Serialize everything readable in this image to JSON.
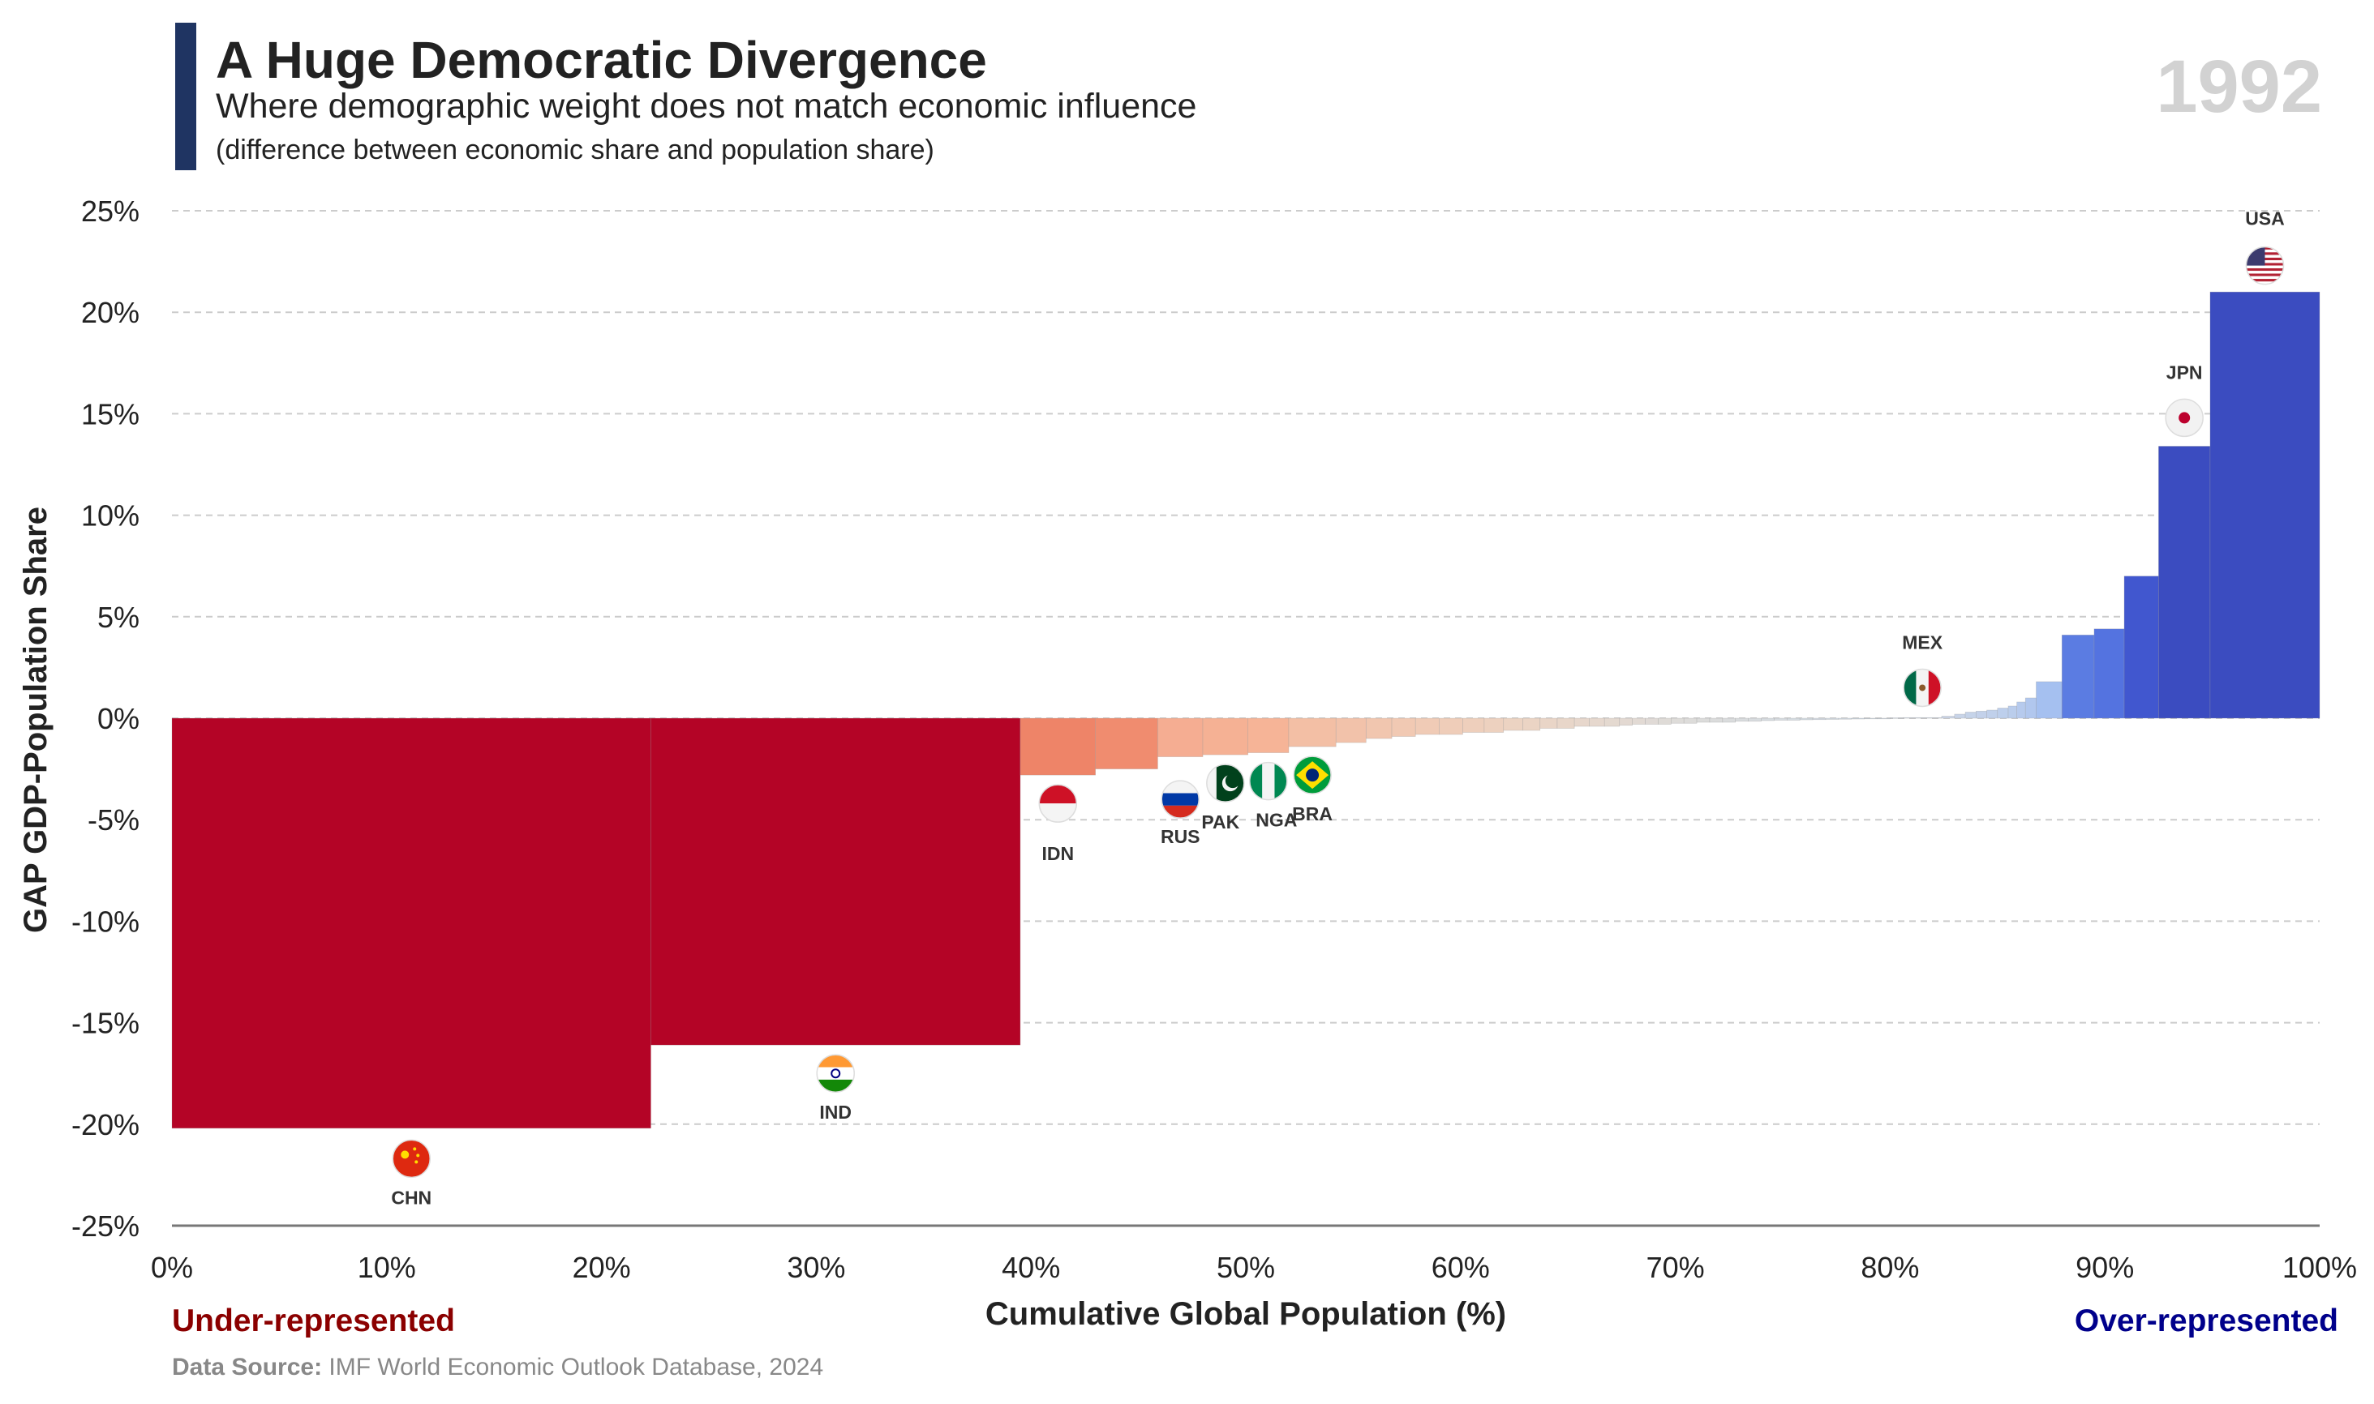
{
  "header": {
    "title": "A Huge Democratic Divergence",
    "subtitle": "Where demographic weight does not match economic influence",
    "note": "(difference between economic share and population share)",
    "year": "1992"
  },
  "footer": {
    "under_label": "Under-represented",
    "over_label": "Over-represented",
    "source_prefix": "Data Source:",
    "source_text": "IMF World Economic Outlook Database, 2024"
  },
  "colors": {
    "title_bar": "#1f3462",
    "under": "#8b0000",
    "over": "#00008b",
    "grid": "#cccccc",
    "zero_axis": "#777777"
  },
  "chart_data": {
    "type": "bar",
    "variant": "variable-width (Marimekko) bars",
    "xlabel": "Cumulative Global Population (%)",
    "ylabel": "GAP GDP-Population Share",
    "xlim": [
      0,
      100
    ],
    "ylim": [
      -25,
      25
    ],
    "xticks": [
      "0%",
      "10%",
      "20%",
      "30%",
      "40%",
      "50%",
      "60%",
      "70%",
      "80%",
      "90%",
      "100%"
    ],
    "yticks": [
      "25%",
      "20%",
      "15%",
      "10%",
      "5%",
      "0%",
      "-5%",
      "-10%",
      "-15%",
      "-20%",
      "-25%"
    ],
    "grid": true,
    "labeled_countries": [
      "CHN",
      "IND",
      "IDN",
      "RUS",
      "PAK",
      "NGA",
      "BRA",
      "MEX",
      "JPN",
      "USA"
    ],
    "bars": [
      {
        "label": "CHN",
        "x0": 0,
        "x1": 22.3,
        "value": -20.2,
        "color": "#b40426"
      },
      {
        "label": "IND",
        "x0": 22.3,
        "x1": 39.5,
        "value": -16.1,
        "color": "#b40426"
      },
      {
        "label": "IDN",
        "x0": 39.5,
        "x1": 43.0,
        "value": -2.8,
        "color": "#ee8468"
      },
      {
        "x0": 43.0,
        "x1": 45.9,
        "value": -2.5,
        "color": "#f08c6f"
      },
      {
        "label": "RUS",
        "x0": 45.9,
        "x1": 48.0,
        "value": -1.9,
        "color": "#f5ad92"
      },
      {
        "label": "PAK",
        "x0": 48.0,
        "x1": 50.1,
        "value": -1.8,
        "color": "#f5b194"
      },
      {
        "label": "NGA",
        "x0": 50.1,
        "x1": 52.0,
        "value": -1.7,
        "color": "#f6b497"
      },
      {
        "label": "BRA",
        "x0": 52.0,
        "x1": 54.2,
        "value": -1.4,
        "color": "#f3bfa5"
      },
      {
        "x0": 54.2,
        "x1": 55.6,
        "value": -1.2,
        "color": "#f2c2aa"
      },
      {
        "x0": 55.6,
        "x1": 56.8,
        "value": -1.0,
        "color": "#f1c6af"
      },
      {
        "x0": 56.8,
        "x1": 57.9,
        "value": -0.9,
        "color": "#f1c9b3"
      },
      {
        "x0": 57.9,
        "x1": 59.0,
        "value": -0.8,
        "color": "#f0cbb6"
      },
      {
        "x0": 59.0,
        "x1": 60.1,
        "value": -0.8,
        "color": "#efcdb9"
      },
      {
        "x0": 60.1,
        "x1": 61.1,
        "value": -0.7,
        "color": "#eecfbc"
      },
      {
        "x0": 61.1,
        "x1": 62.0,
        "value": -0.7,
        "color": "#edd1bf"
      },
      {
        "x0": 62.0,
        "x1": 62.9,
        "value": -0.6,
        "color": "#ecd3c2"
      },
      {
        "x0": 62.9,
        "x1": 63.7,
        "value": -0.6,
        "color": "#ebd4c4"
      },
      {
        "x0": 63.7,
        "x1": 64.5,
        "value": -0.5,
        "color": "#e9d5c7"
      },
      {
        "x0": 64.5,
        "x1": 65.3,
        "value": -0.5,
        "color": "#e8d6c9"
      },
      {
        "x0": 65.3,
        "x1": 66.0,
        "value": -0.4,
        "color": "#e7d7cc"
      },
      {
        "x0": 66.0,
        "x1": 66.7,
        "value": -0.4,
        "color": "#e6d8ce"
      },
      {
        "x0": 66.7,
        "x1": 67.4,
        "value": -0.4,
        "color": "#e4d9d0"
      },
      {
        "x0": 67.4,
        "x1": 68.0,
        "value": -0.35,
        "color": "#e3d9d2"
      },
      {
        "x0": 68.0,
        "x1": 68.6,
        "value": -0.3,
        "color": "#e2dad4"
      },
      {
        "x0": 68.6,
        "x1": 69.2,
        "value": -0.3,
        "color": "#e0dad6"
      },
      {
        "x0": 69.2,
        "x1": 69.8,
        "value": -0.3,
        "color": "#dfdbd7"
      },
      {
        "x0": 69.8,
        "x1": 70.4,
        "value": -0.25,
        "color": "#dedcd9"
      },
      {
        "x0": 70.4,
        "x1": 71.0,
        "value": -0.25,
        "color": "#dddcda"
      },
      {
        "x0": 71.0,
        "x1": 71.6,
        "value": -0.2,
        "color": "#dcdcdb"
      },
      {
        "x0": 71.6,
        "x1": 72.2,
        "value": -0.2,
        "color": "#dbdcdc"
      },
      {
        "x0": 72.2,
        "x1": 72.8,
        "value": -0.2,
        "color": "#dadcdd"
      },
      {
        "x0": 72.8,
        "x1": 73.4,
        "value": -0.15,
        "color": "#d9dcde"
      },
      {
        "x0": 73.4,
        "x1": 74.0,
        "value": -0.15,
        "color": "#d8dcdf"
      },
      {
        "x0": 74.0,
        "x1": 74.6,
        "value": -0.12,
        "color": "#d7dce0"
      },
      {
        "x0": 74.6,
        "x1": 75.2,
        "value": -0.1,
        "color": "#d6dbe0"
      },
      {
        "x0": 75.2,
        "x1": 75.8,
        "value": -0.1,
        "color": "#d5dbe1"
      },
      {
        "x0": 75.8,
        "x1": 76.4,
        "value": -0.08,
        "color": "#d4dbe2"
      },
      {
        "x0": 76.4,
        "x1": 77.0,
        "value": -0.07,
        "color": "#d3dae2"
      },
      {
        "x0": 77.0,
        "x1": 77.6,
        "value": -0.06,
        "color": "#d2dae3"
      },
      {
        "x0": 77.6,
        "x1": 78.2,
        "value": -0.05,
        "color": "#d1dae3"
      },
      {
        "x0": 78.2,
        "x1": 78.8,
        "value": -0.04,
        "color": "#d0d9e4"
      },
      {
        "x0": 78.8,
        "x1": 79.4,
        "value": -0.03,
        "color": "#cfd9e4"
      },
      {
        "x0": 79.4,
        "x1": 80.0,
        "value": -0.02,
        "color": "#ced8e5"
      },
      {
        "x0": 80.0,
        "x1": 80.6,
        "value": 0.02,
        "color": "#cdd8e5"
      },
      {
        "label": "MEX",
        "x0": 80.6,
        "x1": 82.4,
        "value": 0.03,
        "color": "#ccd7e6"
      },
      {
        "x0": 82.4,
        "x1": 83.0,
        "value": 0.1,
        "color": "#cad5e7"
      },
      {
        "x0": 83.0,
        "x1": 83.5,
        "value": 0.2,
        "color": "#c8d4e8"
      },
      {
        "x0": 83.5,
        "x1": 84.0,
        "value": 0.3,
        "color": "#c5d3e9"
      },
      {
        "x0": 84.0,
        "x1": 84.5,
        "value": 0.35,
        "color": "#c3d1ea"
      },
      {
        "x0": 84.5,
        "x1": 85.0,
        "value": 0.4,
        "color": "#c0d0eb"
      },
      {
        "x0": 85.0,
        "x1": 85.5,
        "value": 0.5,
        "color": "#bdcfec"
      },
      {
        "x0": 85.5,
        "x1": 85.9,
        "value": 0.6,
        "color": "#bacdec"
      },
      {
        "x0": 85.9,
        "x1": 86.3,
        "value": 0.8,
        "color": "#b6caed"
      },
      {
        "x0": 86.3,
        "x1": 86.8,
        "value": 1.0,
        "color": "#b1c7ee"
      },
      {
        "x0": 86.8,
        "x1": 88.0,
        "value": 1.8,
        "color": "#a5c0f0"
      },
      {
        "x0": 88.0,
        "x1": 89.5,
        "value": 4.1,
        "color": "#5b7ce2"
      },
      {
        "x0": 89.5,
        "x1": 90.9,
        "value": 4.4,
        "color": "#5473e0"
      },
      {
        "x0": 90.9,
        "x1": 92.5,
        "value": 7.0,
        "color": "#4157cf"
      },
      {
        "label": "JPN",
        "x0": 92.5,
        "x1": 94.9,
        "value": 13.4,
        "color": "#3b4cc0"
      },
      {
        "label": "USA",
        "x0": 94.9,
        "x1": 100.0,
        "value": 21.0,
        "color": "#3b4cc0"
      }
    ]
  },
  "flags": [
    {
      "code": "CHN",
      "icon": "china-flag-icon"
    },
    {
      "code": "IND",
      "icon": "india-flag-icon"
    },
    {
      "code": "IDN",
      "icon": "indonesia-flag-icon"
    },
    {
      "code": "RUS",
      "icon": "russia-flag-icon"
    },
    {
      "code": "PAK",
      "icon": "pakistan-flag-icon"
    },
    {
      "code": "NGA",
      "icon": "nigeria-flag-icon"
    },
    {
      "code": "BRA",
      "icon": "brazil-flag-icon"
    },
    {
      "code": "MEX",
      "icon": "mexico-flag-icon"
    },
    {
      "code": "JPN",
      "icon": "japan-flag-icon"
    },
    {
      "code": "USA",
      "icon": "usa-flag-icon"
    }
  ]
}
